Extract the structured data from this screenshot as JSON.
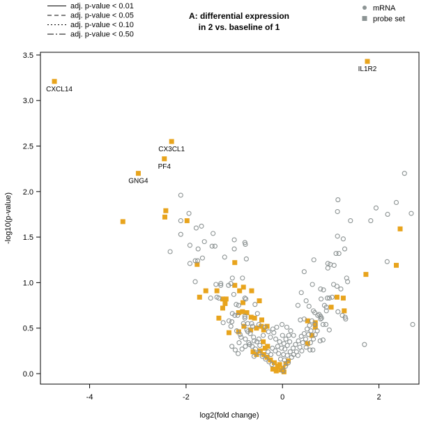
{
  "figure": {
    "title_line1": "A: differential expression",
    "title_line2": "in 2 vs. baseline of 1"
  },
  "pvalue_legend": [
    {
      "style": "solid",
      "label": "adj. p-value < 0.01"
    },
    {
      "style": "dashed",
      "label": "adj. p-value < 0.05"
    },
    {
      "style": "dotted",
      "label": "adj. p-value < 0.10"
    },
    {
      "style": "dashdot",
      "label": "adj. p-value < 0.50"
    }
  ],
  "marker_legend": [
    {
      "shape": "circle",
      "label": "mRNA"
    },
    {
      "shape": "square",
      "label": "probe set"
    }
  ],
  "colors": {
    "mrna": "#8B9292",
    "probe_set": "#E8A41D",
    "legend_marker": "#8C9494",
    "axis": "#000000"
  },
  "chart_data": {
    "type": "scatter",
    "title": "A: differential expression in 2 vs. baseline of 1",
    "xlabel": "log2(fold change)",
    "ylabel": "-log10(p-value)",
    "xlim": [
      -5.02,
      2.83
    ],
    "ylim": [
      -0.115,
      3.53
    ],
    "xticks": [
      {
        "v": -4,
        "label": "-4"
      },
      {
        "v": -2,
        "label": "-2"
      },
      {
        "v": 0,
        "label": "0"
      },
      {
        "v": 2,
        "label": "2"
      }
    ],
    "yticks": [
      {
        "v": 0,
        "label": "0.0"
      },
      {
        "v": 0.5,
        "label": "0.5"
      },
      {
        "v": 1,
        "label": "1.0"
      },
      {
        "v": 1.5,
        "label": "1.5"
      },
      {
        "v": 2,
        "label": "2.0"
      },
      {
        "v": 2.5,
        "label": "2.5"
      },
      {
        "v": 3,
        "label": "3.0"
      },
      {
        "v": 3.5,
        "label": "3.5"
      }
    ],
    "grid": false,
    "legend_position": "top",
    "labeled_points": [
      {
        "label": "CXCL14",
        "x": -4.73,
        "y": 3.21,
        "dx": 7
      },
      {
        "label": "IL1R2",
        "x": 1.76,
        "y": 3.43,
        "dx": 0
      },
      {
        "label": "CX3CL1",
        "x": -2.3,
        "y": 2.55,
        "dx": 0
      },
      {
        "label": "PF4",
        "x": -2.45,
        "y": 2.36,
        "dx": 0
      },
      {
        "label": "GNG4",
        "x": -2.99,
        "y": 2.2,
        "dx": 0
      }
    ],
    "series": [
      {
        "name": "probe set",
        "marker": "square",
        "points": [
          [
            -3.31,
            1.67
          ],
          [
            -2.42,
            1.79
          ],
          [
            -2.44,
            1.72
          ],
          [
            -1.98,
            1.68
          ],
          [
            -1.77,
            1.2
          ],
          [
            -0.99,
            1.22
          ],
          [
            2.44,
            1.59
          ],
          [
            2.36,
            1.19
          ],
          [
            1.73,
            1.09
          ],
          [
            1.13,
            0.84
          ],
          [
            1.26,
            0.83
          ],
          [
            1.01,
            0.73
          ],
          [
            1.28,
            0.69
          ],
          [
            0.52,
            0.58
          ],
          [
            0.68,
            0.56
          ],
          [
            0.68,
            0.51
          ],
          [
            0.61,
            0.42
          ],
          [
            0.52,
            0.33
          ],
          [
            -1.59,
            0.91
          ],
          [
            -1.72,
            0.84
          ],
          [
            -1.36,
            0.91
          ],
          [
            -1.24,
            0.82
          ],
          [
            -1.17,
            0.82
          ],
          [
            -0.99,
            0.97
          ],
          [
            -0.89,
            0.91
          ],
          [
            -0.81,
            0.95
          ],
          [
            -0.64,
            0.91
          ],
          [
            -1.19,
            0.77
          ],
          [
            -0.82,
            0.78
          ],
          [
            -0.48,
            0.8
          ],
          [
            -1.24,
            0.72
          ],
          [
            -0.91,
            0.67
          ],
          [
            -0.83,
            0.68
          ],
          [
            -0.74,
            0.67
          ],
          [
            -1.32,
            0.61
          ],
          [
            -0.65,
            0.62
          ],
          [
            -0.58,
            0.61
          ],
          [
            -0.43,
            0.59
          ],
          [
            -1.11,
            0.45
          ],
          [
            -0.91,
            0.46
          ],
          [
            -0.8,
            0.52
          ],
          [
            -0.66,
            0.48
          ],
          [
            -0.54,
            0.5
          ],
          [
            -0.44,
            0.52
          ],
          [
            -0.39,
            0.48
          ],
          [
            -0.32,
            0.52
          ],
          [
            -0.4,
            0.35
          ],
          [
            -0.31,
            0.3
          ],
          [
            -0.36,
            0.28
          ],
          [
            -0.61,
            0.24
          ],
          [
            -0.54,
            0.21
          ],
          [
            -0.46,
            0.25
          ],
          [
            -0.39,
            0.21
          ],
          [
            -0.32,
            0.18
          ],
          [
            -0.25,
            0.15
          ],
          [
            -0.17,
            0.12
          ],
          [
            -0.1,
            0.08
          ],
          [
            -0.03,
            0.04
          ],
          [
            0.01,
            0.06
          ],
          [
            0.07,
            0.11
          ],
          [
            0.12,
            0.14
          ],
          [
            -0.2,
            0.05
          ],
          [
            -0.13,
            0.03
          ],
          [
            -0.06,
            0.1
          ],
          [
            0.03,
            0.02
          ]
        ]
      },
      {
        "name": "mRNA",
        "marker": "circle",
        "points": [
          [
            -2.11,
            1.96
          ],
          [
            -1.94,
            1.76
          ],
          [
            -2.11,
            1.68
          ],
          [
            -1.79,
            1.6
          ],
          [
            -1.68,
            1.62
          ],
          [
            -2.11,
            1.53
          ],
          [
            -1.44,
            1.54
          ],
          [
            -1.62,
            1.45
          ],
          [
            -1.92,
            1.41
          ],
          [
            -1.75,
            1.37
          ],
          [
            -2.33,
            1.34
          ],
          [
            -1.46,
            1.4
          ],
          [
            -1.4,
            1.4
          ],
          [
            -1.0,
            1.47
          ],
          [
            -0.78,
            1.44
          ],
          [
            -0.77,
            1.42
          ],
          [
            -1.0,
            1.37
          ],
          [
            -1.2,
            1.28
          ],
          [
            -1.66,
            1.27
          ],
          [
            -1.81,
            1.24
          ],
          [
            -1.76,
            1.24
          ],
          [
            -1.92,
            1.21
          ],
          [
            -0.75,
            1.26
          ],
          [
            2.53,
            2.2
          ],
          [
            1.15,
            1.91
          ],
          [
            2.36,
            1.88
          ],
          [
            1.94,
            1.82
          ],
          [
            1.14,
            1.78
          ],
          [
            2.18,
            1.75
          ],
          [
            2.67,
            1.76
          ],
          [
            1.41,
            1.68
          ],
          [
            1.83,
            1.68
          ],
          [
            1.14,
            1.51
          ],
          [
            1.26,
            1.48
          ],
          [
            1.29,
            1.37
          ],
          [
            1.11,
            1.32
          ],
          [
            1.17,
            1.32
          ],
          [
            0.65,
            1.25
          ],
          [
            0.94,
            1.21
          ],
          [
            0.99,
            1.2
          ],
          [
            1.07,
            1.19
          ],
          [
            2.17,
            1.23
          ],
          [
            -1.81,
            1.01
          ],
          [
            -1.49,
            0.83
          ],
          [
            -1.38,
            0.98
          ],
          [
            -1.28,
            0.99
          ],
          [
            -1.28,
            0.97
          ],
          [
            -1.12,
            0.97
          ],
          [
            -1.07,
            0.99
          ],
          [
            -1.04,
            1.05
          ],
          [
            -0.83,
            1.05
          ],
          [
            -1.36,
            0.84
          ],
          [
            -1.32,
            0.83
          ],
          [
            -1.01,
            0.87
          ],
          [
            -0.96,
            0.76
          ],
          [
            -0.91,
            0.75
          ],
          [
            -0.78,
            0.83
          ],
          [
            -0.76,
            0.82
          ],
          [
            -0.57,
            0.76
          ],
          [
            -1.04,
            0.66
          ],
          [
            -0.99,
            0.64
          ],
          [
            -0.93,
            0.64
          ],
          [
            -0.78,
            0.63
          ],
          [
            -0.78,
            0.61
          ],
          [
            -0.52,
            0.66
          ],
          [
            -1.11,
            0.58
          ],
          [
            -1.05,
            0.57
          ],
          [
            -1.23,
            0.56
          ],
          [
            -0.81,
            0.55
          ],
          [
            -0.72,
            0.55
          ],
          [
            -0.64,
            0.55
          ],
          [
            0.45,
            1.12
          ],
          [
            0.94,
            1.16
          ],
          [
            0.62,
            0.98
          ],
          [
            0.39,
            0.89
          ],
          [
            0.79,
            0.93
          ],
          [
            0.85,
            0.92
          ],
          [
            1.06,
            0.98
          ],
          [
            1.13,
            0.96
          ],
          [
            1.21,
            0.93
          ],
          [
            1.33,
            1.05
          ],
          [
            1.35,
            1.01
          ],
          [
            0.8,
            0.82
          ],
          [
            0.93,
            0.83
          ],
          [
            0.97,
            0.83
          ],
          [
            1.03,
            0.84
          ],
          [
            0.49,
            0.8
          ],
          [
            0.32,
            0.75
          ],
          [
            0.55,
            0.74
          ],
          [
            0.87,
            0.75
          ],
          [
            0.91,
            0.73
          ],
          [
            0.64,
            0.69
          ],
          [
            0.67,
            0.67
          ],
          [
            0.91,
            0.69
          ],
          [
            1.15,
            0.68
          ],
          [
            1.24,
            0.64
          ],
          [
            1.3,
            0.62
          ],
          [
            1.31,
            0.6
          ],
          [
            0.37,
            0.59
          ],
          [
            0.45,
            0.6
          ],
          [
            0.73,
            0.64
          ],
          [
            0.76,
            0.65
          ],
          [
            0.79,
            0.63
          ],
          [
            0.81,
            0.61
          ],
          [
            0.79,
            0.6
          ],
          [
            0.84,
            0.54
          ],
          [
            0.9,
            0.54
          ],
          [
            0.97,
            0.48
          ],
          [
            0.78,
            0.36
          ],
          [
            0.84,
            0.37
          ],
          [
            1.7,
            0.32
          ],
          [
            0.57,
            0.26
          ],
          [
            0.63,
            0.26
          ],
          [
            2.7,
            0.54
          ],
          [
            -1.07,
            0.52
          ],
          [
            -0.86,
            0.4
          ],
          [
            -0.9,
            0.34
          ],
          [
            -0.77,
            0.38
          ],
          [
            -0.72,
            0.46
          ],
          [
            -0.62,
            0.52
          ],
          [
            -0.49,
            0.54
          ],
          [
            -0.36,
            0.51
          ],
          [
            -0.68,
            0.32
          ],
          [
            -0.59,
            0.36
          ],
          [
            -0.49,
            0.38
          ],
          [
            -0.4,
            0.42
          ],
          [
            -0.29,
            0.46
          ],
          [
            -0.2,
            0.49
          ],
          [
            -0.12,
            0.51
          ],
          [
            -0.01,
            0.54
          ],
          [
            0.09,
            0.51
          ],
          [
            0.17,
            0.47
          ],
          [
            0.23,
            0.42
          ],
          [
            -0.59,
            0.19
          ],
          [
            0.04,
            0.15
          ],
          [
            0.1,
            0.2
          ],
          [
            0.16,
            0.24
          ],
          [
            0.22,
            0.28
          ],
          [
            0.27,
            0.32
          ],
          [
            0.33,
            0.36
          ],
          [
            0.39,
            0.41
          ],
          [
            0.45,
            0.44
          ],
          [
            0.51,
            0.49
          ],
          [
            0.56,
            0.53
          ],
          [
            0.29,
            0.24
          ],
          [
            0.36,
            0.29
          ],
          [
            0.42,
            0.34
          ],
          [
            0.48,
            0.38
          ],
          [
            0.54,
            0.43
          ],
          [
            0.59,
            0.47
          ],
          [
            0.19,
            0.18
          ],
          [
            0.12,
            0.12
          ],
          [
            0.06,
            0.08
          ],
          [
            0.01,
            0.03
          ],
          [
            0.23,
            0.21
          ],
          [
            0.32,
            0.2
          ],
          [
            0.4,
            0.25
          ],
          [
            0.49,
            0.29
          ],
          [
            0.58,
            0.34
          ],
          [
            0.64,
            0.38
          ],
          [
            0.68,
            0.43
          ],
          [
            0.72,
            0.47
          ],
          [
            0.61,
            0.58
          ],
          [
            0.67,
            0.54
          ],
          [
            0.05,
            0.27
          ],
          [
            0.1,
            0.31
          ],
          [
            0.15,
            0.35
          ],
          [
            0.02,
            0.21
          ],
          [
            -0.04,
            0.16
          ],
          [
            -0.08,
            0.22
          ],
          [
            0.07,
            0.38
          ],
          [
            0.13,
            0.42
          ],
          [
            0.03,
            0.33
          ],
          [
            -0.02,
            0.28
          ],
          [
            -0.06,
            0.35
          ],
          [
            0.0,
            0.42
          ],
          [
            -0.1,
            0.3
          ],
          [
            -0.15,
            0.25
          ],
          [
            -0.21,
            0.28
          ],
          [
            -0.14,
            0.38
          ],
          [
            -0.24,
            0.21
          ],
          [
            -0.3,
            0.24
          ],
          [
            -0.18,
            0.45
          ],
          [
            -0.25,
            0.4
          ],
          [
            -0.22,
            0.1
          ],
          [
            -0.28,
            0.13
          ],
          [
            -0.35,
            0.16
          ],
          [
            -0.42,
            0.19
          ],
          [
            -0.49,
            0.23
          ],
          [
            -0.56,
            0.27
          ],
          [
            -0.63,
            0.3
          ],
          [
            -0.7,
            0.34
          ],
          [
            -0.77,
            0.3
          ],
          [
            -0.84,
            0.27
          ],
          [
            -0.47,
            0.31
          ],
          [
            -0.53,
            0.35
          ],
          [
            -0.6,
            0.4
          ],
          [
            -0.67,
            0.44
          ],
          [
            -0.74,
            0.48
          ],
          [
            -0.92,
            0.22
          ],
          [
            -0.98,
            0.26
          ],
          [
            -1.05,
            0.3
          ],
          [
            -0.88,
            0.43
          ],
          [
            -0.95,
            0.47
          ]
        ]
      }
    ]
  }
}
